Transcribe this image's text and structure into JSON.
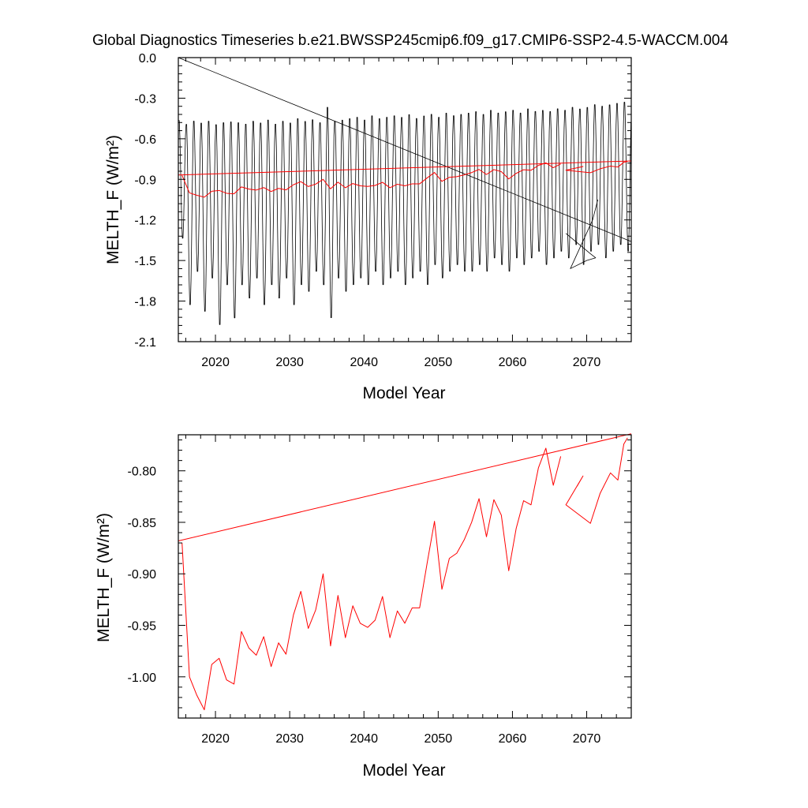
{
  "title": "Global Diagnostics Timeseries b.e21.BWSSP245cmip6.f09_g17.CMIP6-SSP2-4.5-WACCM.004",
  "colors": {
    "monthly": "#000000",
    "annual": "#ff0000"
  },
  "chart_data": [
    {
      "type": "line",
      "xlabel": "Model Year",
      "ylabel": "MELTH_F (W/m²)",
      "xlim": [
        2015,
        2076
      ],
      "ylim": [
        -2.1,
        0.0
      ],
      "xticks": [
        2020,
        2030,
        2040,
        2050,
        2060,
        2070
      ],
      "xtick_labels": [
        "2020",
        "2030",
        "2040",
        "2050",
        "2060",
        "2070"
      ],
      "yticks": [
        0.0,
        -0.3,
        -0.6,
        -0.9,
        -1.2,
        -1.5,
        -1.8,
        -2.1
      ],
      "ytick_labels": [
        "0.0",
        "-0.3",
        "-0.6",
        "-0.9",
        "-1.2",
        "-1.5",
        "-1.8",
        "-2.1"
      ],
      "monthly_series": {
        "start_year": 2015,
        "end_year": 2076,
        "annual_max": [
          -0.45,
          -0.47,
          -0.45,
          -0.46,
          -0.45,
          -0.47,
          -0.46,
          -0.45,
          -0.46,
          -0.47,
          -0.45,
          -0.46,
          -0.44,
          -0.47,
          -0.45,
          -0.46,
          -0.43,
          -0.45,
          -0.44,
          -0.46,
          -0.34,
          -0.45,
          -0.44,
          -0.43,
          -0.42,
          -0.44,
          -0.41,
          -0.43,
          -0.42,
          -0.41,
          -0.42,
          -0.4,
          -0.43,
          -0.41,
          -0.4,
          -0.42,
          -0.39,
          -0.41,
          -0.4,
          -0.39,
          -0.38,
          -0.4,
          -0.37,
          -0.39,
          -0.38,
          -0.37,
          -0.39,
          -0.36,
          -0.38,
          -0.37,
          -0.38,
          -0.36,
          -0.37,
          -0.35,
          -0.36,
          -0.35,
          -0.33,
          -0.34,
          -0.33,
          -0.32,
          -0.31
        ],
        "annual_min": [
          -1.35,
          -1.85,
          -1.6,
          -1.9,
          -1.65,
          -2.0,
          -1.7,
          -1.95,
          -1.7,
          -1.8,
          -1.65,
          -1.85,
          -1.7,
          -1.8,
          -1.65,
          -1.85,
          -1.7,
          -1.75,
          -1.6,
          -1.7,
          -1.95,
          -1.65,
          -1.75,
          -1.7,
          -1.65,
          -1.7,
          -1.6,
          -1.7,
          -1.65,
          -1.6,
          -1.7,
          -1.65,
          -1.6,
          -1.7,
          -1.55,
          -1.65,
          -1.6,
          -1.55,
          -1.6,
          -1.6,
          -1.55,
          -1.6,
          -1.5,
          -1.55,
          -1.6,
          -1.5,
          -1.55,
          -1.5,
          -1.45,
          -1.55,
          -1.5,
          -1.45,
          -1.5,
          -1.4,
          -1.55,
          -1.45,
          -1.4,
          -1.5,
          -1.45,
          -1.4,
          -1.45
        ],
        "spurious_segments": [
          [
            [
              2015,
              0.0
            ],
            [
              2076,
              -1.36
            ]
          ],
          [
            [
              2067.2,
              -1.3
            ],
            [
              2070.5,
              -1.45
            ],
            [
              2071.2,
              -1.48
            ],
            [
              2070.0,
              -1.5
            ],
            [
              2067.8,
              -1.56
            ],
            [
              2070.8,
              -1.2
            ],
            [
              2071.5,
              -1.05
            ]
          ]
        ]
      },
      "annual_x": [
        2015.5,
        2016.5,
        2017.5,
        2018.5,
        2019.5,
        2020.5,
        2021.5,
        2022.5,
        2023.5,
        2024.5,
        2025.5,
        2026.5,
        2027.5,
        2028.5,
        2029.5,
        2030.5,
        2031.5,
        2032.5,
        2033.5,
        2034.5,
        2035.5,
        2036.5,
        2037.5,
        2038.5,
        2039.5,
        2040.5,
        2041.5,
        2042.5,
        2043.5,
        2044.5,
        2045.5,
        2046.5,
        2047.5,
        2048.5,
        2049.5,
        2050.5,
        2051.5,
        2052.5,
        2053.5,
        2054.5,
        2055.5,
        2056.5,
        2057.5,
        2058.5,
        2059.5,
        2060.5,
        2061.5,
        2062.5,
        2063.5,
        2064.5,
        2065.5,
        2066.5
      ],
      "annual_y": [
        -0.87,
        -1.0,
        -1.018,
        -1.032,
        -0.988,
        -0.982,
        -1.003,
        -1.007,
        -0.956,
        -0.972,
        -0.979,
        -0.961,
        -0.99,
        -0.967,
        -0.978,
        -0.94,
        -0.917,
        -0.953,
        -0.935,
        -0.9,
        -0.97,
        -0.921,
        -0.962,
        -0.931,
        -0.948,
        -0.952,
        -0.945,
        -0.922,
        -0.962,
        -0.936,
        -0.948,
        -0.933,
        -0.933,
        -0.89,
        -0.849,
        -0.915,
        -0.885,
        -0.88,
        -0.867,
        -0.85,
        -0.827,
        -0.864,
        -0.828,
        -0.843,
        -0.897,
        -0.856,
        -0.829,
        -0.833,
        -0.797,
        -0.778,
        -0.814,
        -0.786
      ],
      "annual_extra_x": [
        2068.7,
        2069.5,
        2067.2,
        2070.5,
        2071.8,
        2073.2,
        2074.2,
        2075.0,
        2075.5
      ],
      "annual_extra_y": [
        -0.815,
        -0.805,
        -0.833,
        -0.851,
        -0.822,
        -0.802,
        -0.809,
        -0.774,
        -0.768
      ],
      "annual_trend": [
        [
          2015,
          -0.868
        ],
        [
          2076,
          -0.764
        ]
      ]
    },
    {
      "type": "line",
      "xlabel": "Model Year",
      "ylabel": "MELTH_F (W/m²)",
      "xlim": [
        2015,
        2076
      ],
      "ylim": [
        -1.04,
        -0.765
      ],
      "xticks": [
        2020,
        2030,
        2040,
        2050,
        2060,
        2070
      ],
      "xtick_labels": [
        "2020",
        "2030",
        "2040",
        "2050",
        "2060",
        "2070"
      ],
      "yticks": [
        -0.8,
        -0.85,
        -0.9,
        -0.95,
        -1.0
      ],
      "ytick_labels": [
        "-0.80",
        "-0.85",
        "-0.90",
        "-0.95",
        "-1.00"
      ]
    }
  ]
}
